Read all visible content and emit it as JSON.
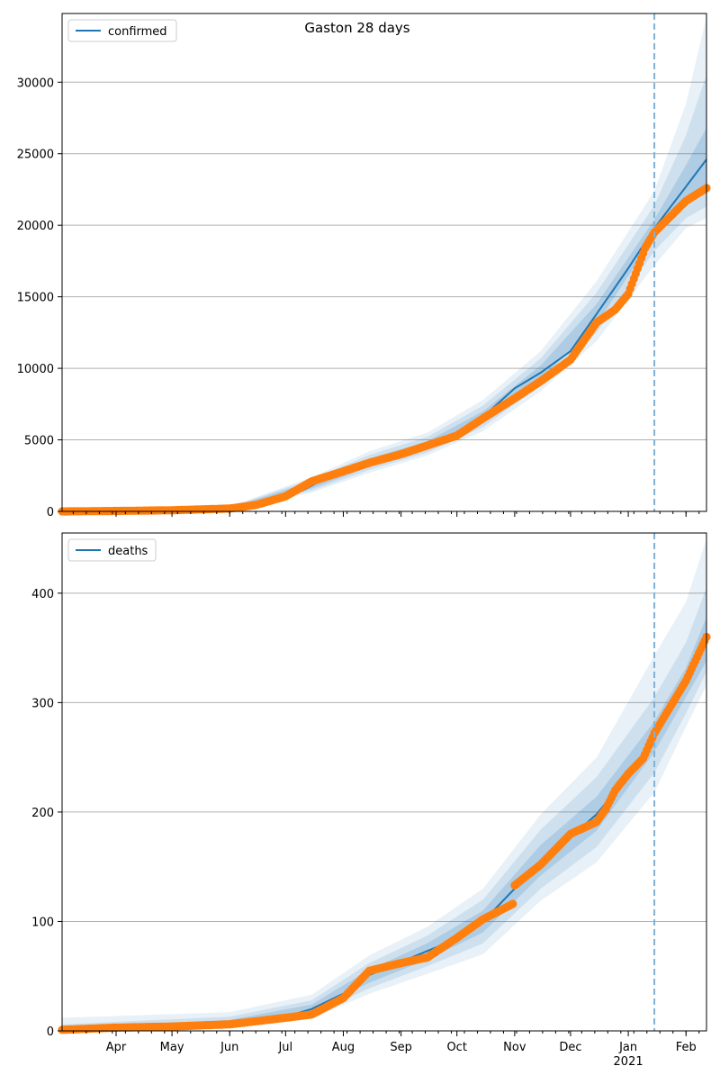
{
  "figure": {
    "title": "Gaston 28 days"
  },
  "colors": {
    "model_line": "#1f77b4",
    "observed": "#ff7f0e",
    "band": "#1f77b4",
    "grid": "#b0b0b0",
    "divider": "#7fb1d6"
  },
  "chart_data": [
    {
      "type": "line",
      "legend": "confirmed",
      "legend_position": "top-left",
      "x_domain": [
        "2020-03-03",
        "2021-02-12"
      ],
      "ylim": [
        0,
        34800
      ],
      "yticks": [
        0,
        5000,
        10000,
        15000,
        20000,
        25000,
        30000
      ],
      "grid": "horizontal",
      "forecast_divider_date": "2021-01-15",
      "model_points": [
        [
          "2020-03-03",
          0
        ],
        [
          "2020-04-15",
          40
        ],
        [
          "2020-06-01",
          220
        ],
        [
          "2020-06-20",
          650
        ],
        [
          "2020-07-10",
          1450
        ],
        [
          "2020-07-20",
          2150
        ],
        [
          "2020-08-01",
          2800
        ],
        [
          "2020-08-15",
          3400
        ],
        [
          "2020-09-01",
          4000
        ],
        [
          "2020-09-15",
          4600
        ],
        [
          "2020-10-01",
          5400
        ],
        [
          "2020-10-15",
          6600
        ],
        [
          "2020-11-01",
          8600
        ],
        [
          "2020-11-15",
          9700
        ],
        [
          "2020-12-01",
          11200
        ],
        [
          "2020-12-15",
          13800
        ],
        [
          "2021-01-01",
          17000
        ],
        [
          "2021-01-15",
          19800
        ],
        [
          "2021-02-01",
          22700
        ],
        [
          "2021-02-12",
          24600
        ]
      ],
      "band_points": [
        [
          "2020-03-03",
          0,
          0,
          0,
          0,
          0,
          0
        ],
        [
          "2020-06-01",
          180,
          260,
          150,
          300,
          120,
          340
        ],
        [
          "2020-07-15",
          1600,
          2100,
          1450,
          2250,
          1300,
          2400
        ],
        [
          "2020-08-15",
          3100,
          3700,
          2900,
          3950,
          2700,
          4200
        ],
        [
          "2020-09-15",
          4300,
          4900,
          4100,
          5200,
          3900,
          5500
        ],
        [
          "2020-10-15",
          6200,
          7000,
          5900,
          7400,
          5600,
          7800
        ],
        [
          "2020-11-15",
          9200,
          10200,
          8800,
          10700,
          8400,
          11200
        ],
        [
          "2020-12-15",
          13100,
          14500,
          12500,
          15300,
          11900,
          16100
        ],
        [
          "2021-01-15",
          19200,
          20400,
          18200,
          21400,
          17200,
          22400
        ],
        [
          "2021-02-01",
          21400,
          24200,
          20500,
          26300,
          19800,
          28500
        ],
        [
          "2021-02-12",
          22300,
          26800,
          21300,
          30500,
          20500,
          34600
        ]
      ],
      "observed_points": [
        [
          "2020-03-03",
          0
        ],
        [
          "2020-04-01",
          30
        ],
        [
          "2020-05-01",
          80
        ],
        [
          "2020-06-01",
          200
        ],
        [
          "2020-06-15",
          450
        ],
        [
          "2020-07-01",
          1050
        ],
        [
          "2020-07-15",
          2100
        ],
        [
          "2020-08-01",
          2800
        ],
        [
          "2020-08-15",
          3400
        ],
        [
          "2020-09-01",
          4000
        ],
        [
          "2020-09-15",
          4600
        ],
        [
          "2020-10-01",
          5300
        ],
        [
          "2020-10-15",
          6500
        ],
        [
          "2020-11-01",
          7900
        ],
        [
          "2020-11-15",
          9100
        ],
        [
          "2020-12-01",
          10600
        ],
        [
          "2020-12-15",
          13200
        ],
        [
          "2020-12-25",
          14100
        ],
        [
          "2021-01-01",
          15200
        ],
        [
          "2021-01-10",
          18400
        ],
        [
          "2021-01-15",
          19500
        ],
        [
          "2021-02-01",
          21700
        ],
        [
          "2021-02-12",
          22600
        ]
      ]
    },
    {
      "type": "line",
      "legend": "deaths",
      "legend_position": "top-left",
      "x_domain": [
        "2020-03-03",
        "2021-02-12"
      ],
      "ylim": [
        0,
        455
      ],
      "yticks": [
        0,
        100,
        200,
        300,
        400
      ],
      "grid": "horizontal",
      "forecast_divider_date": "2021-01-15",
      "xticks": [
        "Apr",
        "May",
        "Jun",
        "Jul",
        "Aug",
        "Sep",
        "Oct",
        "Nov",
        "Dec",
        "Jan",
        "Feb"
      ],
      "xtick_year": "2021",
      "model_points": [
        [
          "2020-03-03",
          2
        ],
        [
          "2020-05-01",
          4
        ],
        [
          "2020-06-01",
          7
        ],
        [
          "2020-07-01",
          13
        ],
        [
          "2020-07-15",
          20
        ],
        [
          "2020-08-01",
          34
        ],
        [
          "2020-08-15",
          51
        ],
        [
          "2020-09-01",
          63
        ],
        [
          "2020-09-15",
          73
        ],
        [
          "2020-10-01",
          84
        ],
        [
          "2020-10-15",
          100
        ],
        [
          "2020-11-01",
          130
        ],
        [
          "2020-11-15",
          156
        ],
        [
          "2020-12-01",
          177
        ],
        [
          "2020-12-15",
          198
        ],
        [
          "2021-01-01",
          233
        ],
        [
          "2021-01-15",
          269
        ],
        [
          "2021-02-01",
          318
        ],
        [
          "2021-02-12",
          358
        ]
      ],
      "band_points": [
        [
          "2020-03-03",
          2,
          2,
          0,
          6,
          0,
          12
        ],
        [
          "2020-06-01",
          6,
          10,
          4,
          13,
          3,
          17
        ],
        [
          "2020-07-15",
          18,
          24,
          14,
          28,
          11,
          33
        ],
        [
          "2020-08-15",
          44,
          56,
          39,
          62,
          34,
          69
        ],
        [
          "2020-09-15",
          65,
          80,
          59,
          87,
          52,
          95
        ],
        [
          "2020-10-15",
          90,
          110,
          80,
          120,
          70,
          130
        ],
        [
          "2020-11-15",
          142,
          170,
          130,
          184,
          119,
          198
        ],
        [
          "2020-12-15",
          183,
          214,
          168,
          232,
          154,
          250
        ],
        [
          "2021-01-15",
          255,
          283,
          236,
          305,
          218,
          343
        ],
        [
          "2021-02-01",
          305,
          332,
          290,
          355,
          278,
          392
        ],
        [
          "2021-02-12",
          338,
          378,
          328,
          405,
          316,
          450
        ]
      ],
      "observed_points": [
        [
          "2020-03-03",
          1
        ],
        [
          "2020-04-01",
          3
        ],
        [
          "2020-05-01",
          4
        ],
        [
          "2020-06-01",
          6
        ],
        [
          "2020-07-01",
          12
        ],
        [
          "2020-07-15",
          15
        ],
        [
          "2020-08-01",
          30
        ],
        [
          "2020-08-15",
          55
        ],
        [
          "2020-09-01",
          62
        ],
        [
          "2020-09-15",
          67
        ],
        [
          "2020-10-01",
          85
        ],
        [
          "2020-10-15",
          102
        ],
        [
          "2020-10-31",
          116
        ],
        [
          "2020-11-01",
          133
        ],
        [
          "2020-11-15",
          152
        ],
        [
          "2020-12-01",
          180
        ],
        [
          "2020-12-15",
          191
        ],
        [
          "2020-12-20",
          203
        ],
        [
          "2020-12-25",
          220
        ],
        [
          "2021-01-01",
          235
        ],
        [
          "2021-01-09",
          249
        ],
        [
          "2021-01-15",
          272
        ],
        [
          "2021-02-01",
          320
        ],
        [
          "2021-02-12",
          360
        ]
      ]
    }
  ]
}
